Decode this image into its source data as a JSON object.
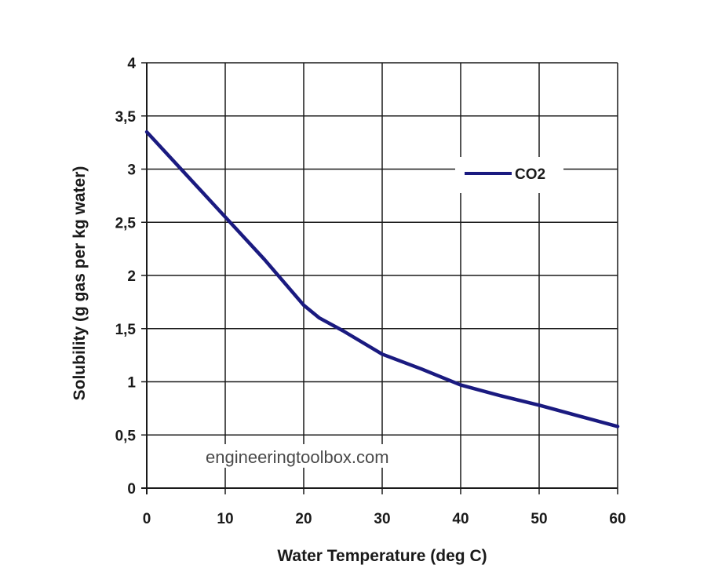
{
  "chart_data": {
    "type": "line",
    "title": "",
    "xlabel": "Water Temperature (deg C)",
    "ylabel": "Solubility (g gas per kg water)",
    "xlim": [
      0,
      60
    ],
    "ylim": [
      0,
      4
    ],
    "x_ticks": [
      0,
      10,
      20,
      30,
      40,
      50,
      60
    ],
    "y_ticks": [
      0,
      0.5,
      1,
      1.5,
      2,
      2.5,
      3,
      3.5,
      4
    ],
    "x_tick_labels": [
      "0",
      "10",
      "20",
      "30",
      "40",
      "50",
      "60"
    ],
    "y_tick_labels": [
      "0",
      "0,5",
      "1",
      "1,5",
      "2",
      "2,5",
      "3",
      "3,5",
      "4"
    ],
    "grid": true,
    "legend_position": "upper-right",
    "watermark": "engineeringtoolbox.com",
    "series": [
      {
        "name": "CO2",
        "color": "#1a1a80",
        "x": [
          0,
          5,
          10,
          15,
          20,
          22,
          25,
          30,
          35,
          40,
          45,
          50,
          55,
          60
        ],
        "y": [
          3.35,
          2.95,
          2.55,
          2.15,
          1.72,
          1.6,
          1.48,
          1.26,
          1.12,
          0.97,
          0.87,
          0.78,
          0.68,
          0.58
        ]
      }
    ]
  }
}
